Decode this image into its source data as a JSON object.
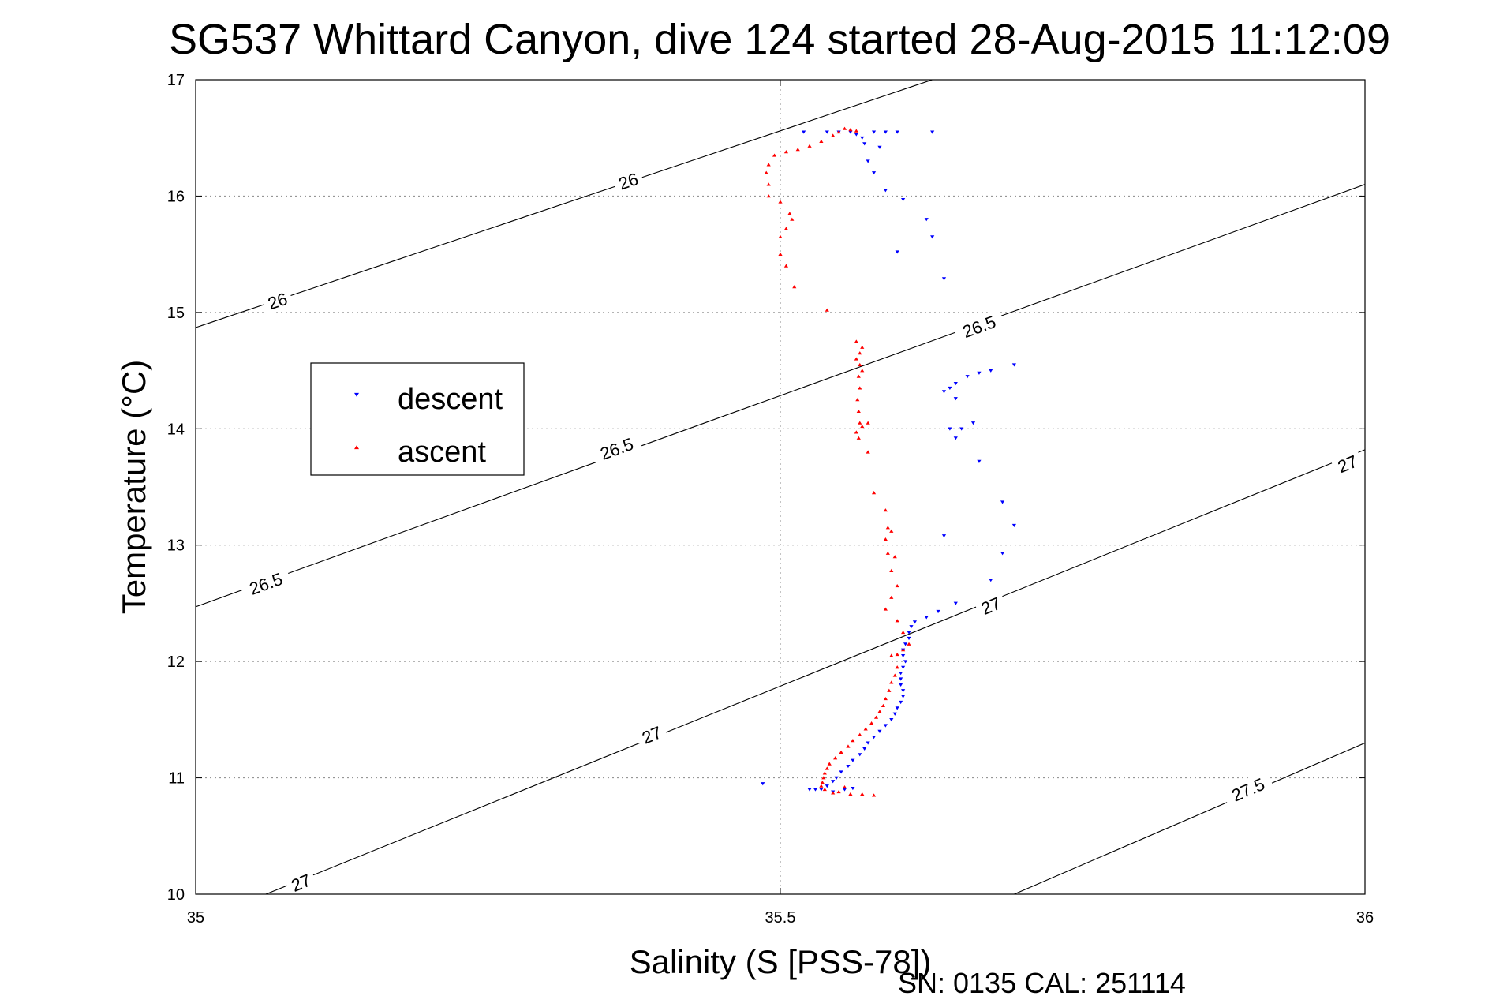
{
  "chart_data": {
    "type": "scatter",
    "title": "SG537 Whittard Canyon, dive 124 started 28-Aug-2015 11:12:09",
    "xlabel": "Salinity (S [PSS-78])",
    "ylabel": "Temperature (°C)",
    "xlim": [
      35,
      36
    ],
    "ylim": [
      10,
      17
    ],
    "xticks": [
      "35",
      "35.5",
      "36"
    ],
    "yticks": [
      "10",
      "11",
      "12",
      "13",
      "14",
      "15",
      "16",
      "17"
    ],
    "grid": true,
    "legend_placement": "left",
    "footnote": "SN: 0135  CAL: 251114",
    "density_contours": [
      {
        "label": "26",
        "points": [
          [
            35,
            14.87
          ],
          [
            35.63,
            17.0
          ]
        ],
        "label_positions": [
          [
            35.07,
            15.1
          ],
          [
            35.37,
            16.13
          ]
        ]
      },
      {
        "label": "26.5",
        "points": [
          [
            35,
            12.47
          ],
          [
            36,
            16.1
          ]
        ],
        "label_positions": [
          [
            35.06,
            12.67
          ],
          [
            35.36,
            13.83
          ],
          [
            35.67,
            14.88
          ]
        ]
      },
      {
        "label": "27",
        "points": [
          [
            35.06,
            10.0
          ],
          [
            36,
            13.82
          ]
        ],
        "label_positions": [
          [
            35.09,
            10.1
          ],
          [
            35.39,
            11.37
          ],
          [
            35.68,
            12.48
          ],
          [
            35.985,
            13.7
          ]
        ]
      },
      {
        "label": "27.5",
        "points": [
          [
            35.7,
            10.0
          ],
          [
            36,
            11.3
          ]
        ],
        "label_positions": [
          [
            35.9,
            10.9
          ]
        ]
      }
    ],
    "series": [
      {
        "name": "descent",
        "color": "#0000ff",
        "marker": "triangle-down",
        "points": [
          [
            35.52,
            16.55
          ],
          [
            35.54,
            16.55
          ],
          [
            35.55,
            16.55
          ],
          [
            35.56,
            16.55
          ],
          [
            35.565,
            16.53
          ],
          [
            35.57,
            16.5
          ],
          [
            35.572,
            16.45
          ],
          [
            35.58,
            16.55
          ],
          [
            35.59,
            16.55
          ],
          [
            35.6,
            16.55
          ],
          [
            35.63,
            16.55
          ],
          [
            35.585,
            16.42
          ],
          [
            35.575,
            16.3
          ],
          [
            35.58,
            16.2
          ],
          [
            35.59,
            16.05
          ],
          [
            35.605,
            15.97
          ],
          [
            35.625,
            15.8
          ],
          [
            35.63,
            15.65
          ],
          [
            35.6,
            15.52
          ],
          [
            35.64,
            15.29
          ],
          [
            35.64,
            14.32
          ],
          [
            35.645,
            14.35
          ],
          [
            35.65,
            14.39
          ],
          [
            35.66,
            14.45
          ],
          [
            35.67,
            14.48
          ],
          [
            35.68,
            14.5
          ],
          [
            35.7,
            14.55
          ],
          [
            35.65,
            14.26
          ],
          [
            35.645,
            14.0
          ],
          [
            35.655,
            14.0
          ],
          [
            35.665,
            14.05
          ],
          [
            35.65,
            13.92
          ],
          [
            35.67,
            13.72
          ],
          [
            35.69,
            13.37
          ],
          [
            35.7,
            13.17
          ],
          [
            35.64,
            13.08
          ],
          [
            35.69,
            12.93
          ],
          [
            35.68,
            12.7
          ],
          [
            35.65,
            12.5
          ],
          [
            35.635,
            12.43
          ],
          [
            35.625,
            12.38
          ],
          [
            35.615,
            12.34
          ],
          [
            35.612,
            12.3
          ],
          [
            35.61,
            12.25
          ],
          [
            35.61,
            12.2
          ],
          [
            35.607,
            12.15
          ],
          [
            35.605,
            12.1
          ],
          [
            35.605,
            12.05
          ],
          [
            35.607,
            12.0
          ],
          [
            35.605,
            11.95
          ],
          [
            35.603,
            11.9
          ],
          [
            35.603,
            11.85
          ],
          [
            35.603,
            11.8
          ],
          [
            35.605,
            11.75
          ],
          [
            35.605,
            11.7
          ],
          [
            35.603,
            11.65
          ],
          [
            35.6,
            11.6
          ],
          [
            35.598,
            11.55
          ],
          [
            35.595,
            11.5
          ],
          [
            35.59,
            11.45
          ],
          [
            35.585,
            11.4
          ],
          [
            35.58,
            11.35
          ],
          [
            35.575,
            11.3
          ],
          [
            35.572,
            11.25
          ],
          [
            35.568,
            11.2
          ],
          [
            35.562,
            11.15
          ],
          [
            35.558,
            11.1
          ],
          [
            35.552,
            11.05
          ],
          [
            35.548,
            11.0
          ],
          [
            35.545,
            10.97
          ],
          [
            35.54,
            10.93
          ],
          [
            35.535,
            10.9
          ],
          [
            35.525,
            10.9
          ],
          [
            35.53,
            10.9
          ],
          [
            35.545,
            10.88
          ],
          [
            35.555,
            10.9
          ],
          [
            35.562,
            10.91
          ],
          [
            35.485,
            10.95
          ]
        ]
      },
      {
        "name": "ascent",
        "color": "#ff0000",
        "marker": "triangle-up",
        "points": [
          [
            35.555,
            16.58
          ],
          [
            35.56,
            16.57
          ],
          [
            35.565,
            16.56
          ],
          [
            35.55,
            16.55
          ],
          [
            35.545,
            16.52
          ],
          [
            35.535,
            16.47
          ],
          [
            35.525,
            16.43
          ],
          [
            35.515,
            16.4
          ],
          [
            35.505,
            16.38
          ],
          [
            35.495,
            16.35
          ],
          [
            35.49,
            16.27
          ],
          [
            35.488,
            16.2
          ],
          [
            35.49,
            16.1
          ],
          [
            35.49,
            16.0
          ],
          [
            35.5,
            15.95
          ],
          [
            35.508,
            15.85
          ],
          [
            35.51,
            15.8
          ],
          [
            35.505,
            15.72
          ],
          [
            35.5,
            15.65
          ],
          [
            35.5,
            15.5
          ],
          [
            35.505,
            15.4
          ],
          [
            35.512,
            15.22
          ],
          [
            35.54,
            15.02
          ],
          [
            35.565,
            14.75
          ],
          [
            35.57,
            14.7
          ],
          [
            35.568,
            14.65
          ],
          [
            35.565,
            14.6
          ],
          [
            35.568,
            14.55
          ],
          [
            35.57,
            14.5
          ],
          [
            35.567,
            14.45
          ],
          [
            35.568,
            14.35
          ],
          [
            35.566,
            14.25
          ],
          [
            35.567,
            14.15
          ],
          [
            35.568,
            14.05
          ],
          [
            35.57,
            14.02
          ],
          [
            35.575,
            14.05
          ],
          [
            35.565,
            13.97
          ],
          [
            35.567,
            13.92
          ],
          [
            35.575,
            13.8
          ],
          [
            35.58,
            13.45
          ],
          [
            35.59,
            13.3
          ],
          [
            35.592,
            13.15
          ],
          [
            35.595,
            13.12
          ],
          [
            35.59,
            13.05
          ],
          [
            35.592,
            12.93
          ],
          [
            35.598,
            12.9
          ],
          [
            35.595,
            12.78
          ],
          [
            35.6,
            12.65
          ],
          [
            35.595,
            12.55
          ],
          [
            35.59,
            12.45
          ],
          [
            35.6,
            12.35
          ],
          [
            35.605,
            12.25
          ],
          [
            35.61,
            12.15
          ],
          [
            35.605,
            12.1
          ],
          [
            35.6,
            12.06
          ],
          [
            35.595,
            12.05
          ],
          [
            35.6,
            11.95
          ],
          [
            35.598,
            11.88
          ],
          [
            35.595,
            11.82
          ],
          [
            35.593,
            11.75
          ],
          [
            35.59,
            11.68
          ],
          [
            35.588,
            11.62
          ],
          [
            35.585,
            11.57
          ],
          [
            35.582,
            11.52
          ],
          [
            35.578,
            11.47
          ],
          [
            35.573,
            11.42
          ],
          [
            35.568,
            11.37
          ],
          [
            35.562,
            11.32
          ],
          [
            35.558,
            11.27
          ],
          [
            35.552,
            11.22
          ],
          [
            35.547,
            11.17
          ],
          [
            35.542,
            11.12
          ],
          [
            35.54,
            11.08
          ],
          [
            35.538,
            11.04
          ],
          [
            35.537,
            11.0
          ],
          [
            35.536,
            10.96
          ],
          [
            35.535,
            10.93
          ],
          [
            35.538,
            10.9
          ],
          [
            35.55,
            10.88
          ],
          [
            35.56,
            10.86
          ],
          [
            35.57,
            10.86
          ],
          [
            35.58,
            10.85
          ],
          [
            35.545,
            10.87
          ],
          [
            35.555,
            10.92
          ]
        ]
      }
    ]
  }
}
